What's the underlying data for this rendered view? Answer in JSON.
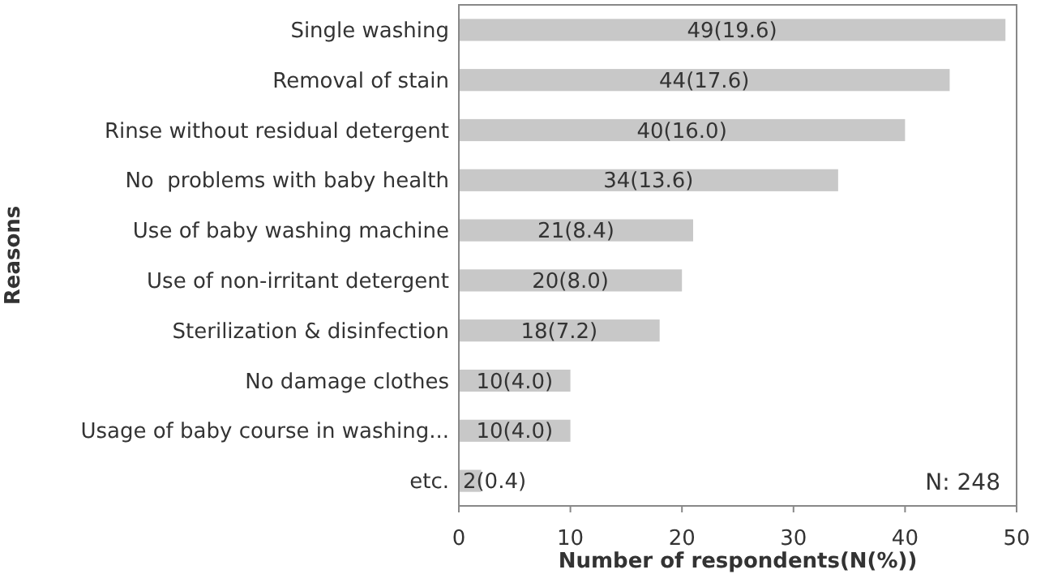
{
  "chart_data": {
    "type": "bar",
    "orientation": "horizontal",
    "xlabel": "Number of respondents(N(%))",
    "ylabel": "Reasons",
    "categories": [
      "Single washing",
      "Removal of stain",
      "Rinse without residual detergent",
      "No  problems with baby health",
      "Use of baby washing machine",
      "Use of non-irritant detergent",
      "Sterilization & disinfection",
      "No damage clothes",
      "Usage of baby course in washing...",
      "etc."
    ],
    "values": [
      49,
      44,
      40,
      34,
      21,
      20,
      18,
      10,
      10,
      2
    ],
    "value_labels": [
      "49(19.6)",
      "44(17.6)",
      "40(16.0)",
      "34(13.6)",
      "21(8.4)",
      "20(8.0)",
      "18(7.2)",
      "10(4.0)",
      "10(4.0)",
      "2(0.4)"
    ],
    "color": "#c8c8c8",
    "xlim": [
      0,
      50
    ],
    "xticks": [
      0,
      10,
      20,
      30,
      40,
      50
    ],
    "annotations": [
      "N: 248"
    ]
  }
}
